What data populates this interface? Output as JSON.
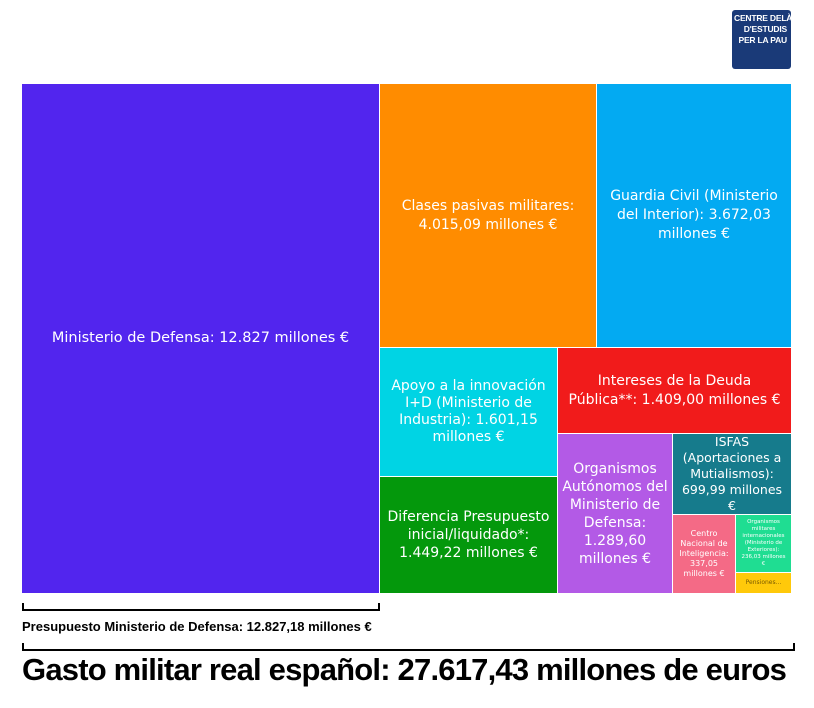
{
  "logo": {
    "line1": "CENTRE DELÀS",
    "line2": "D'ESTUDIS",
    "line3": "PER LA PAU"
  },
  "chart_data": {
    "type": "treemap",
    "items": [
      {
        "label": "Ministerio de Defensa: 12.827 millones €",
        "value": 12827.18,
        "color": "#5225ee"
      },
      {
        "label": "Clases pasivas militares: 4.015,09 millones €",
        "value": 4015.09,
        "color": "#ff8c00"
      },
      {
        "label": "Guardia Civil (Ministerio del Interior): 3.672,03 millones €",
        "value": 3672.03,
        "color": "#03aaf2"
      },
      {
        "label": "Apoyo a la innovación I+D (Ministerio de Industria): 1.601,15 millones €",
        "value": 1601.15,
        "color": "#00d4e4"
      },
      {
        "label": "Intereses de la Deuda Pública**: 1.409,00 millones €",
        "value": 1409.0,
        "color": "#f11b1b"
      },
      {
        "label": "Diferencia Presupuesto inicial/liquidado*: 1.449,22 millones €",
        "value": 1449.22,
        "color": "#04980c"
      },
      {
        "label": "Organismos Autónomos del Ministerio de Defensa: 1.289,60 millones €",
        "value": 1289.6,
        "color": "#b35ae6"
      },
      {
        "label": "ISFAS (Aportaciones a Mutialismos): 699,99 millones €",
        "value": 699.99,
        "color": "#167b8c"
      },
      {
        "label": "Centro Nacional de Inteligencia: 337,05 millones €",
        "value": 337.05,
        "color": "#f46a86"
      },
      {
        "label": "Organismos militares internacionales (Ministerio de Exteriores): 236,03 millones €",
        "value": 236.03,
        "color": "#1fdd92"
      },
      {
        "label": "Pensiones...",
        "value": 80,
        "color": "#ffc90a"
      }
    ],
    "bracket_label": "Presupuesto Ministerio de Defensa: 12.827,18 millones €",
    "total_label": "Gasto militar real español: 27.617,43 millones de euros"
  }
}
